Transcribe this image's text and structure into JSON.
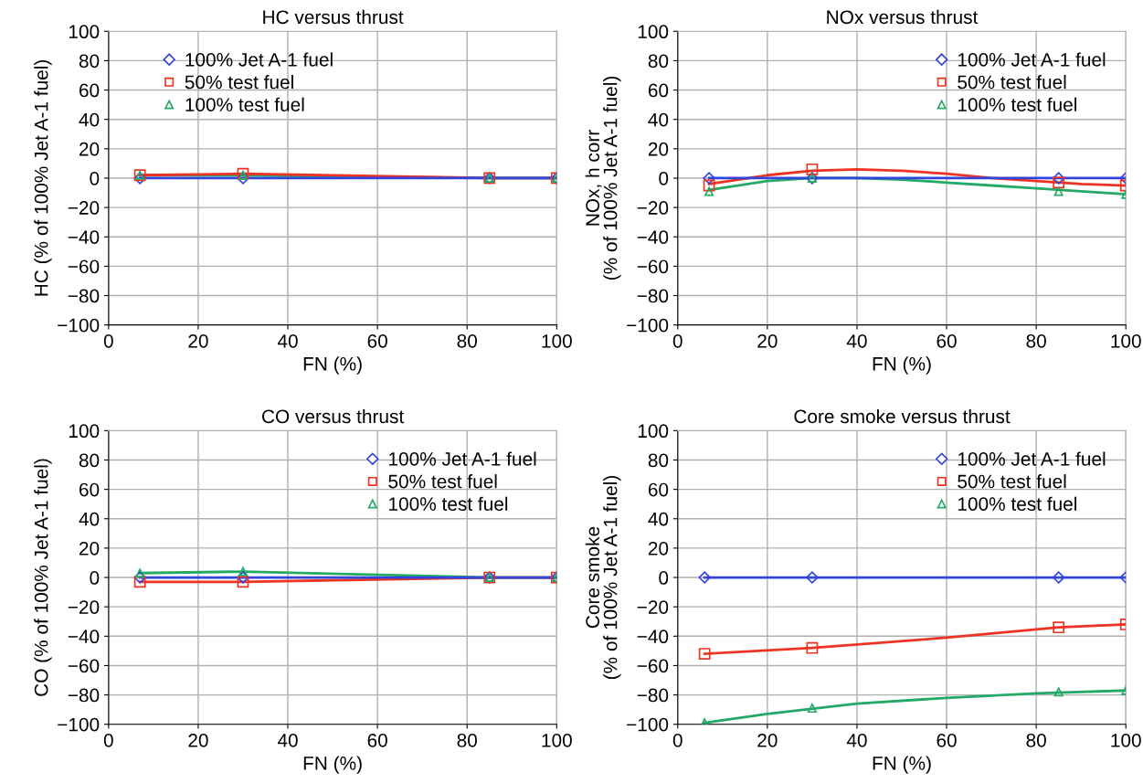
{
  "chart_data": [
    {
      "type": "scatter",
      "title": "HC versus thrust",
      "xlabel": "FN (%)",
      "ylabel": "HC (% of 100% Jet A-1 fuel)",
      "xlim": [
        0,
        100
      ],
      "ylim": [
        -100,
        100
      ],
      "xticks": [
        0,
        20,
        40,
        60,
        80,
        100
      ],
      "yticks": [
        -100,
        -80,
        -60,
        -40,
        -20,
        0,
        20,
        40,
        60,
        80,
        100
      ],
      "grid": true,
      "legend": "top left",
      "series": [
        {
          "name": "100% Jet A-1 fuel",
          "color": "#3344dd",
          "marker": "diamond",
          "x": [
            7,
            30,
            85,
            100
          ],
          "values": [
            0,
            0,
            0,
            0
          ]
        },
        {
          "name": "50% test fuel",
          "color": "#ee3322",
          "marker": "square",
          "x": [
            7,
            30,
            85,
            100
          ],
          "values": [
            2,
            3,
            0,
            0
          ]
        },
        {
          "name": "100% test fuel",
          "color": "#22aa66",
          "marker": "triangle",
          "x": [
            7,
            30,
            85,
            100
          ],
          "values": [
            2,
            2,
            0,
            0
          ]
        },
        {
          "type": "line",
          "color": "#22aa66",
          "x": [
            7,
            30,
            85,
            100
          ],
          "values": [
            2,
            2,
            0,
            0
          ]
        },
        {
          "type": "line",
          "color": "#ee3322",
          "x": [
            7,
            30,
            85,
            100
          ],
          "values": [
            2,
            3,
            0,
            0
          ]
        },
        {
          "type": "line",
          "color": "#3344dd",
          "x": [
            7,
            30,
            85,
            100
          ],
          "values": [
            0,
            0,
            0,
            0
          ]
        }
      ]
    },
    {
      "type": "scatter",
      "title": "NOx versus thrust",
      "xlabel": "FN (%)",
      "ylabel": "NOx, h corr\n(% of 100% Jet A-1 fuel)",
      "xlim": [
        0,
        100
      ],
      "ylim": [
        -100,
        100
      ],
      "xticks": [
        0,
        20,
        40,
        60,
        80,
        100
      ],
      "yticks": [
        -100,
        -80,
        -60,
        -40,
        -20,
        0,
        20,
        40,
        60,
        80,
        100
      ],
      "grid": true,
      "legend": "top right",
      "series": [
        {
          "name": "100% Jet A-1 fuel",
          "color": "#3344dd",
          "marker": "diamond",
          "x": [
            7,
            30,
            85,
            100
          ],
          "values": [
            0,
            0,
            0,
            0
          ]
        },
        {
          "name": "50% test fuel",
          "color": "#ee3322",
          "marker": "square",
          "x": [
            7,
            30,
            85,
            100
          ],
          "values": [
            -5,
            6,
            -3,
            -5
          ]
        },
        {
          "name": "100% test fuel",
          "color": "#22aa66",
          "marker": "triangle",
          "x": [
            7,
            30,
            85,
            100
          ],
          "values": [
            -9,
            0,
            -9,
            -11
          ]
        },
        {
          "type": "line",
          "color": "#22aa66",
          "x": [
            7,
            20,
            30,
            40,
            50,
            60,
            70,
            80,
            90,
            100
          ],
          "values": [
            -8,
            -2,
            0,
            0,
            -1,
            -3,
            -5,
            -7,
            -9,
            -11
          ]
        },
        {
          "type": "line",
          "color": "#ee3322",
          "x": [
            7,
            20,
            30,
            40,
            50,
            60,
            70,
            80,
            90,
            100
          ],
          "values": [
            -4,
            2,
            5,
            6,
            5,
            3,
            0,
            -2,
            -4,
            -5
          ]
        },
        {
          "type": "line",
          "color": "#3344dd",
          "x": [
            7,
            30,
            85,
            100
          ],
          "values": [
            0,
            0,
            0,
            0
          ]
        }
      ]
    },
    {
      "type": "scatter",
      "title": "CO versus thrust",
      "xlabel": "FN (%)",
      "ylabel": "CO (% of 100% Jet A-1 fuel)",
      "xlim": [
        0,
        100
      ],
      "ylim": [
        -100,
        100
      ],
      "xticks": [
        0,
        20,
        40,
        60,
        80,
        100
      ],
      "yticks": [
        -100,
        -80,
        -60,
        -40,
        -20,
        0,
        20,
        40,
        60,
        80,
        100
      ],
      "grid": true,
      "legend": "top right",
      "series": [
        {
          "name": "100% Jet A-1 fuel",
          "color": "#3344dd",
          "marker": "diamond",
          "x": [
            7,
            30,
            85,
            100
          ],
          "values": [
            0,
            0,
            0,
            0
          ]
        },
        {
          "name": "50% test fuel",
          "color": "#ee3322",
          "marker": "square",
          "x": [
            7,
            30,
            85,
            100
          ],
          "values": [
            -3,
            -3,
            0,
            0
          ]
        },
        {
          "name": "100% test fuel",
          "color": "#22aa66",
          "marker": "triangle",
          "x": [
            7,
            30,
            85,
            100
          ],
          "values": [
            3,
            4,
            0,
            0
          ]
        },
        {
          "type": "line",
          "color": "#22aa66",
          "x": [
            7,
            30,
            85,
            100
          ],
          "values": [
            3,
            4,
            0,
            0
          ]
        },
        {
          "type": "line",
          "color": "#ee3322",
          "x": [
            7,
            30,
            85,
            100
          ],
          "values": [
            -3,
            -3,
            0,
            0
          ]
        },
        {
          "type": "line",
          "color": "#3344dd",
          "x": [
            7,
            30,
            85,
            100
          ],
          "values": [
            0,
            0,
            0,
            0
          ]
        }
      ]
    },
    {
      "type": "scatter",
      "title": "Core smoke versus thrust",
      "xlabel": "FN (%)",
      "ylabel": "Core smoke\n(% of 100% Jet A-1 fuel)",
      "xlim": [
        0,
        100
      ],
      "ylim": [
        -100,
        100
      ],
      "xticks": [
        0,
        20,
        40,
        60,
        80,
        100
      ],
      "yticks": [
        -100,
        -80,
        -60,
        -40,
        -20,
        0,
        20,
        40,
        60,
        80,
        100
      ],
      "grid": true,
      "legend": "top right",
      "series": [
        {
          "name": "100% Jet A-1 fuel",
          "color": "#3344dd",
          "marker": "diamond",
          "x": [
            6,
            30,
            85,
            100
          ],
          "values": [
            0,
            0,
            0,
            0
          ]
        },
        {
          "name": "50% test fuel",
          "color": "#ee3322",
          "marker": "square",
          "x": [
            6,
            30,
            85,
            100
          ],
          "values": [
            -52,
            -48,
            -34,
            -32
          ]
        },
        {
          "name": "100% test fuel",
          "color": "#22aa66",
          "marker": "triangle",
          "x": [
            6,
            30,
            85,
            100
          ],
          "values": [
            -99,
            -89,
            -78,
            -77
          ]
        },
        {
          "type": "line",
          "color": "#22aa66",
          "x": [
            6,
            20,
            40,
            60,
            80,
            100
          ],
          "values": [
            -99,
            -93,
            -86,
            -82,
            -79,
            -77
          ]
        },
        {
          "type": "line",
          "color": "#ee3322",
          "x": [
            6,
            30,
            60,
            85,
            100
          ],
          "values": [
            -52,
            -48,
            -41,
            -34,
            -32
          ]
        },
        {
          "type": "line",
          "color": "#3344dd",
          "x": [
            6,
            30,
            85,
            100
          ],
          "values": [
            0,
            0,
            0,
            0
          ]
        }
      ]
    }
  ]
}
